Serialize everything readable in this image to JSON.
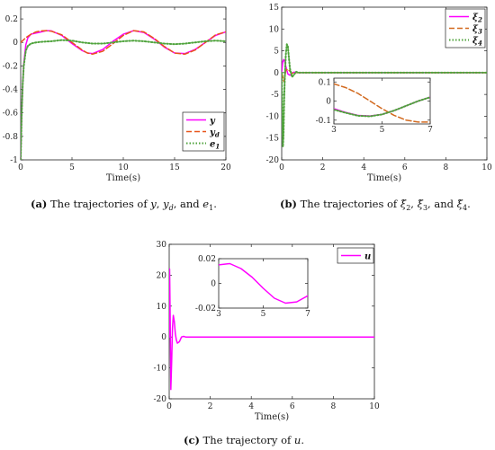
{
  "chart_data": [
    {
      "panel": "a",
      "type": "line",
      "caption": "(a) The trajectories of y, y_d, and e_1.",
      "xlabel": "Time(s)",
      "xlim": [
        0,
        20
      ],
      "ylim": [
        -1,
        0.3
      ],
      "xticks": [
        "0",
        "5",
        "10",
        "15",
        "20"
      ],
      "yticks": [
        "-1",
        "-0.8",
        "-0.6",
        "-0.4",
        "-0.2",
        "0",
        "0.2"
      ],
      "legend": "bottom-right",
      "series": [
        {
          "name": "y",
          "color": "#ff00ff",
          "style": "solid",
          "x": [
            0,
            0.1,
            0.2,
            0.3,
            0.5,
            0.7,
            1,
            1.5,
            2,
            2.5,
            3,
            4,
            5,
            6,
            6.5,
            7,
            8,
            9,
            10,
            11,
            12,
            13,
            14,
            15,
            16,
            17,
            18,
            19,
            20
          ],
          "values": [
            -1,
            -0.6,
            -0.35,
            -0.18,
            -0.02,
            0.04,
            0.07,
            0.08,
            0.09,
            0.1,
            0.098,
            0.06,
            -0.01,
            -0.07,
            -0.09,
            -0.095,
            -0.06,
            0.01,
            0.07,
            0.1,
            0.085,
            0.03,
            -0.04,
            -0.09,
            -0.095,
            -0.06,
            0.0,
            0.06,
            0.09
          ]
        },
        {
          "name": "y_d",
          "color": "#e8551a",
          "style": "dashed",
          "x": [
            0,
            0.5,
            1,
            1.5,
            2,
            2.5,
            3,
            4,
            5,
            6,
            6.5,
            7,
            8,
            9,
            10,
            11,
            12,
            13,
            14,
            15,
            16,
            17,
            18,
            19,
            20
          ],
          "values": [
            0.0,
            0.04,
            0.07,
            0.09,
            0.098,
            0.1,
            0.095,
            0.065,
            0.0,
            -0.065,
            -0.09,
            -0.1,
            -0.075,
            -0.01,
            0.06,
            0.1,
            0.09,
            0.035,
            -0.035,
            -0.09,
            -0.1,
            -0.065,
            0.0,
            0.065,
            0.09
          ]
        },
        {
          "name": "e_1",
          "color": "#4fa33c",
          "style": "dotted",
          "x": [
            0,
            0.1,
            0.2,
            0.3,
            0.5,
            0.7,
            1,
            1.5,
            2,
            3,
            4,
            5,
            6,
            7,
            8,
            9,
            10,
            11,
            12,
            13,
            14,
            15,
            16,
            17,
            18,
            19,
            20
          ],
          "values": [
            -1,
            -0.6,
            -0.35,
            -0.2,
            -0.07,
            -0.03,
            -0.01,
            0.0,
            0.005,
            0.01,
            0.02,
            0.015,
            0.0,
            -0.01,
            -0.01,
            0.0,
            0.01,
            0.015,
            0.01,
            0.0,
            -0.01,
            -0.015,
            -0.01,
            0.0,
            0.01,
            0.015,
            0.01
          ]
        }
      ]
    },
    {
      "panel": "b",
      "type": "line",
      "caption": "(b) The trajectories of ξ̃_2, ξ̃_3, and ξ̃_4.",
      "xlabel": "Time(s)",
      "xlim": [
        0,
        10
      ],
      "ylim": [
        -20,
        15
      ],
      "xticks": [
        "0",
        "2",
        "4",
        "6",
        "8",
        "10"
      ],
      "yticks": [
        "-20",
        "-15",
        "-10",
        "-5",
        "0",
        "5",
        "10",
        "15"
      ],
      "legend": "top-right",
      "series": [
        {
          "name": "ξ2",
          "color": "#ff00ff",
          "style": "solid",
          "x": [
            0,
            0.05,
            0.1,
            0.15,
            0.2,
            0.3,
            0.4,
            0.5,
            0.6,
            0.8,
            1,
            10
          ],
          "values": [
            0,
            2.5,
            3.0,
            2.5,
            1.5,
            -0.3,
            -0.6,
            -0.1,
            0.1,
            0,
            0,
            0
          ]
        },
        {
          "name": "ξ3",
          "color": "#d2691e",
          "style": "dashed",
          "x": [
            0,
            0.05,
            0.1,
            0.15,
            0.2,
            0.3,
            0.4,
            0.5,
            0.6,
            0.8,
            1,
            10
          ],
          "values": [
            0,
            -1.0,
            -2.0,
            -1.0,
            0.5,
            0.8,
            0.3,
            -0.2,
            0,
            0,
            0,
            0
          ]
        },
        {
          "name": "ξ4",
          "color": "#4fa33c",
          "style": "dotted",
          "x": [
            0,
            0.03,
            0.06,
            0.09,
            0.12,
            0.16,
            0.2,
            0.25,
            0.3,
            0.35,
            0.4,
            0.5,
            0.6,
            0.7,
            0.8,
            1,
            10
          ],
          "values": [
            0,
            -10,
            -17,
            -14,
            -6,
            0,
            4,
            6.5,
            6,
            3.5,
            1,
            -1,
            -0.5,
            0.2,
            0,
            0,
            0
          ]
        }
      ],
      "inset": {
        "xlim": [
          3,
          7
        ],
        "ylim": [
          -0.12,
          0.12
        ],
        "xticks": [
          "3",
          "5",
          "7"
        ],
        "yticks": [
          "-0.1",
          "0",
          "0.1"
        ],
        "series": [
          {
            "name": "ξ2",
            "x": [
              3,
              3.5,
              4,
              4.5,
              5,
              5.5,
              6,
              6.5,
              7
            ],
            "values": [
              -0.04,
              -0.06,
              -0.075,
              -0.078,
              -0.07,
              -0.05,
              -0.025,
              0.0,
              0.02
            ]
          },
          {
            "name": "ξ3",
            "x": [
              3,
              3.5,
              4,
              4.5,
              5,
              5.5,
              6,
              6.5,
              7
            ],
            "values": [
              0.09,
              0.07,
              0.04,
              0.0,
              -0.04,
              -0.075,
              -0.1,
              -0.11,
              -0.11
            ]
          },
          {
            "name": "ξ4",
            "x": [
              3,
              3.5,
              4,
              4.5,
              5,
              5.5,
              6,
              6.5,
              7
            ],
            "values": [
              -0.045,
              -0.062,
              -0.077,
              -0.08,
              -0.07,
              -0.05,
              -0.025,
              0.0,
              0.02
            ]
          }
        ]
      }
    },
    {
      "panel": "c",
      "type": "line",
      "caption": "(c) The trajectory of u.",
      "xlabel": "Time(s)",
      "xlim": [
        0,
        10
      ],
      "ylim": [
        -20,
        30
      ],
      "xticks": [
        "0",
        "2",
        "4",
        "6",
        "8",
        "10"
      ],
      "yticks": [
        "-20",
        "-10",
        "0",
        "10",
        "20",
        "30"
      ],
      "legend": "top-right",
      "series": [
        {
          "name": "u",
          "color": "#ff00ff",
          "style": "solid",
          "x": [
            0,
            0.02,
            0.05,
            0.08,
            0.12,
            0.16,
            0.2,
            0.25,
            0.3,
            0.35,
            0.4,
            0.5,
            0.6,
            0.7,
            0.8,
            1,
            10
          ],
          "values": [
            0,
            22,
            5,
            -17,
            -8,
            3,
            7,
            5,
            1,
            -1,
            -2,
            -1.5,
            0,
            0.2,
            0,
            0,
            0
          ]
        }
      ],
      "inset": {
        "xlim": [
          3,
          7
        ],
        "ylim": [
          -0.02,
          0.02
        ],
        "xticks": [
          "3",
          "5",
          "7"
        ],
        "yticks": [
          "-0.02",
          "0",
          "0.02"
        ],
        "series": [
          {
            "name": "u",
            "x": [
              3,
              3.5,
              4,
              4.5,
              5,
              5.5,
              6,
              6.5,
              7
            ],
            "values": [
              0.015,
              0.016,
              0.012,
              0.005,
              -0.004,
              -0.012,
              -0.016,
              -0.015,
              -0.01
            ]
          }
        ]
      }
    }
  ]
}
